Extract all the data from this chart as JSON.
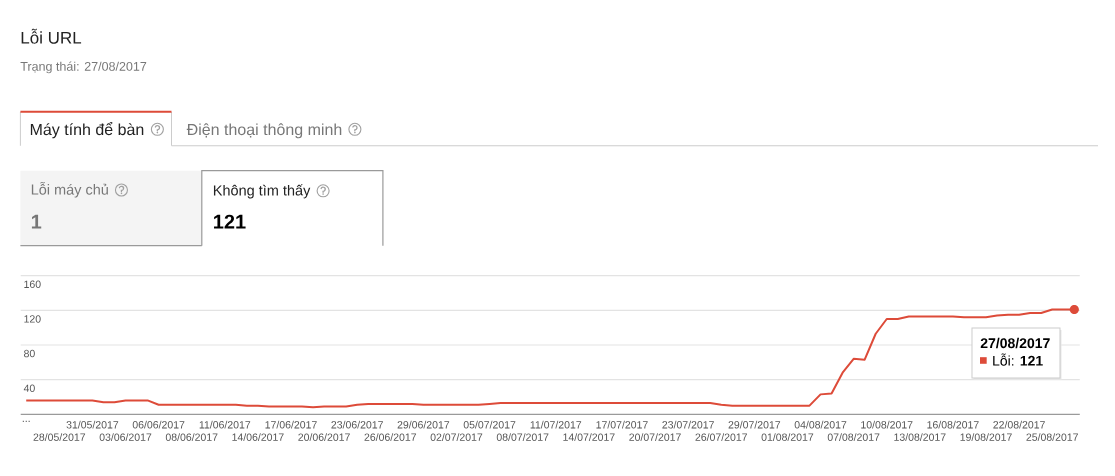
{
  "chart_data": {
    "type": "line",
    "title": "Lỗi URL",
    "subtitle": "Trạng thái: 27/08/2017",
    "categories": [
      "...",
      null,
      null,
      "28/05/2017",
      null,
      null,
      "31/05/2017",
      null,
      null,
      "03/06/2017",
      null,
      null,
      "06/06/2017",
      null,
      null,
      "08/06/2017",
      null,
      null,
      "11/06/2017",
      null,
      null,
      "14/06/2017",
      null,
      null,
      "17/06/2017",
      null,
      null,
      "20/06/2017",
      null,
      null,
      "23/06/2017",
      null,
      null,
      "26/06/2017",
      null,
      null,
      "29/06/2017",
      null,
      null,
      "02/07/2017",
      null,
      null,
      "05/07/2017",
      null,
      null,
      "08/07/2017",
      null,
      null,
      "11/07/2017",
      null,
      null,
      "14/07/2017",
      null,
      null,
      "17/07/2017",
      null,
      null,
      "20/07/2017",
      null,
      null,
      "23/07/2017",
      null,
      null,
      "26/07/2017",
      null,
      null,
      "29/07/2017",
      null,
      null,
      "01/08/2017",
      null,
      null,
      "04/08/2017",
      null,
      null,
      "07/08/2017",
      null,
      null,
      "10/08/2017",
      null,
      null,
      "13/08/2017",
      null,
      null,
      "16/08/2017",
      null,
      null,
      "19/08/2017",
      null,
      null,
      "22/08/2017",
      null,
      null,
      "25/08/2017",
      null,
      null
    ],
    "values": [
      16,
      16,
      16,
      16,
      16,
      16,
      16,
      14,
      14,
      16,
      16,
      16,
      11,
      11,
      11,
      11,
      11,
      11,
      11,
      11,
      10,
      10,
      9,
      9,
      9,
      9,
      8,
      9,
      9,
      9,
      11,
      12,
      12,
      12,
      12,
      12,
      11,
      11,
      11,
      11,
      11,
      11,
      12,
      13,
      13,
      13,
      13,
      13,
      13,
      13,
      13,
      13,
      13,
      13,
      13,
      13,
      13,
      13,
      13,
      13,
      13,
      13,
      13,
      11,
      10,
      10,
      10,
      10,
      10,
      10,
      10,
      10,
      23,
      24,
      48,
      64,
      63,
      93,
      110,
      110,
      113,
      113,
      113,
      113,
      113,
      112,
      112,
      112,
      114,
      115,
      115,
      117,
      117,
      121,
      121,
      121
    ],
    "color": "#dd4b39",
    "ylim": [
      0,
      160
    ],
    "yticks": [
      40,
      80,
      120,
      160
    ],
    "grid": "y",
    "annotations": [
      "Máy tính để bàn",
      "Điện thoại thông minh",
      "Lỗi máy chủ",
      "1",
      "Không tìm thấy",
      "121",
      "27/08/2017",
      "Lỗi: **121**"
    ]
  }
}
